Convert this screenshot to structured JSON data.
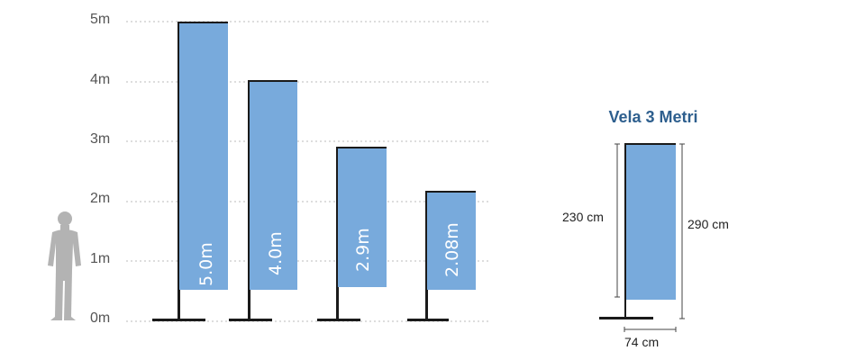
{
  "y_axis": {
    "ticks": [
      "5m",
      "4m",
      "3m",
      "2m",
      "1m",
      "0m"
    ]
  },
  "flags": [
    {
      "label": "5.0m",
      "height_m": 5.0
    },
    {
      "label": "4.0m",
      "height_m": 4.0
    },
    {
      "label": "2.9m",
      "height_m": 2.9
    },
    {
      "label": "2.08m",
      "height_m": 2.08
    }
  ],
  "detail": {
    "title": "Vela 3 Metri",
    "left_dim": "230 cm",
    "right_dim": "290 cm",
    "bottom_dim": "74 cm"
  },
  "colors": {
    "flag": "#78aadc",
    "pole": "#1a1a1a",
    "grid": "#bbbbbb",
    "person": "#b3b3b3",
    "title": "#2e5f8e"
  }
}
